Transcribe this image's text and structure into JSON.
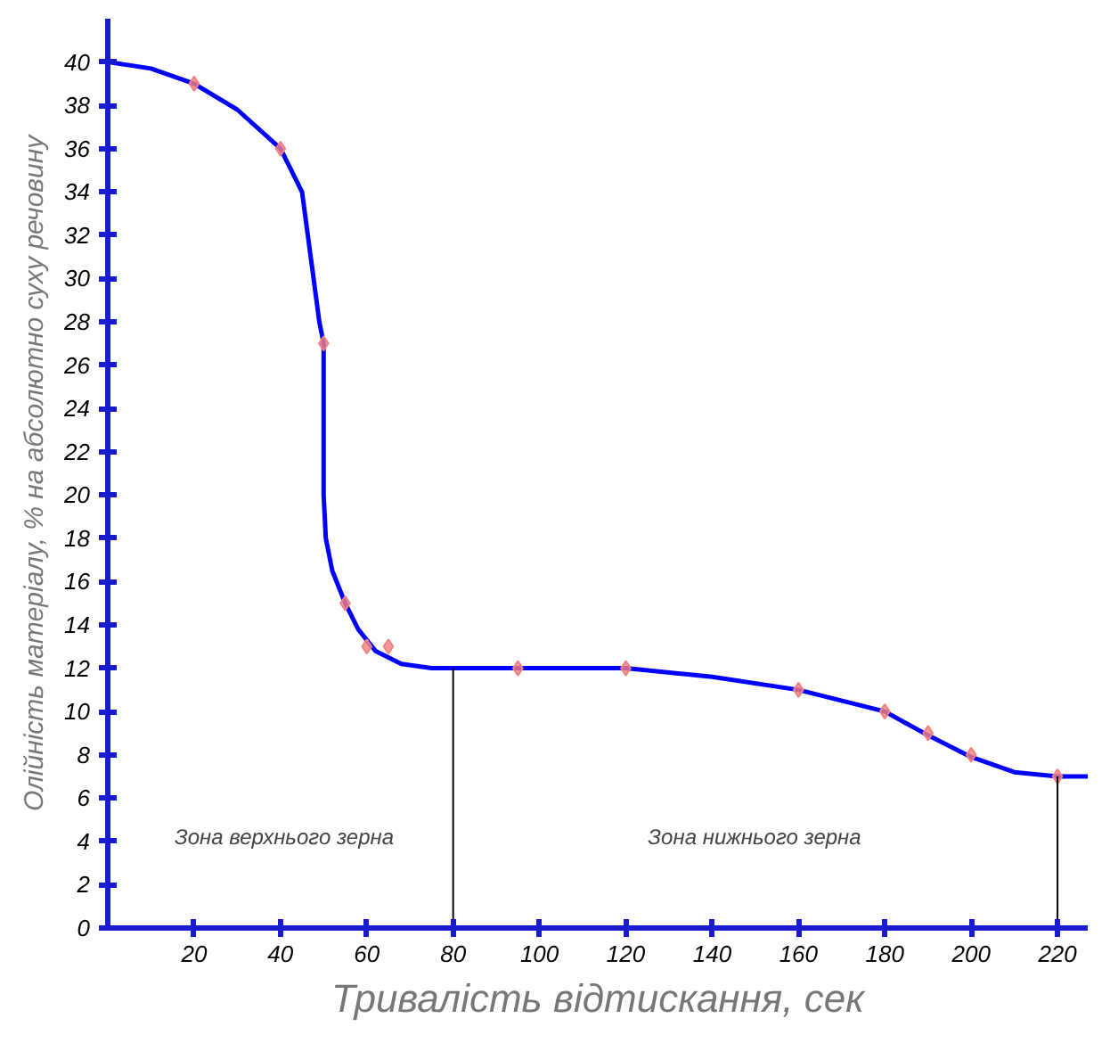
{
  "chart_data": {
    "type": "line",
    "xlabel": "Тривалість відтискання, сек",
    "ylabel": "Олійність матеріалу, % на абсолютно суху речовину",
    "xlim": [
      0,
      227
    ],
    "ylim": [
      0,
      42
    ],
    "xticks": [
      20,
      40,
      60,
      80,
      100,
      120,
      140,
      160,
      180,
      200,
      220
    ],
    "yticks": [
      0,
      2,
      4,
      6,
      8,
      10,
      12,
      14,
      16,
      18,
      20,
      22,
      24,
      26,
      28,
      30,
      32,
      34,
      36,
      38,
      40
    ],
    "grid": false,
    "series": [
      {
        "color": "#0000ff",
        "x": [
          0,
          10,
          20,
          30,
          40,
          45,
          47,
          49,
          50,
          50,
          50.5,
          52,
          55,
          58,
          62,
          68,
          75,
          80,
          95,
          120,
          140,
          160,
          180,
          190,
          200,
          210,
          220,
          227
        ],
        "values": [
          40,
          39.7,
          39,
          37.8,
          36,
          34,
          31,
          28,
          27,
          20,
          18,
          16.5,
          15,
          13.8,
          12.8,
          12.2,
          12,
          12,
          12,
          12,
          11.6,
          11,
          10,
          8.9,
          7.9,
          7.2,
          7,
          7
        ]
      },
      {
        "type": "scatter",
        "color": "#f08080",
        "marker": "diamond",
        "x": [
          20,
          40,
          50,
          55,
          60,
          65,
          95,
          120,
          160,
          180,
          190,
          200,
          220
        ],
        "values": [
          39,
          36,
          27,
          15,
          13,
          13,
          12,
          12,
          11,
          10,
          9,
          8,
          7
        ]
      },
      {
        "color": "#000000",
        "x": [
          80,
          80
        ],
        "values": [
          0,
          12
        ]
      },
      {
        "color": "#000000",
        "x": [
          220,
          220
        ],
        "values": [
          0,
          7
        ]
      }
    ],
    "annotations": [
      "Зона верхнього зерна",
      "Зона нижнього зерна"
    ]
  }
}
